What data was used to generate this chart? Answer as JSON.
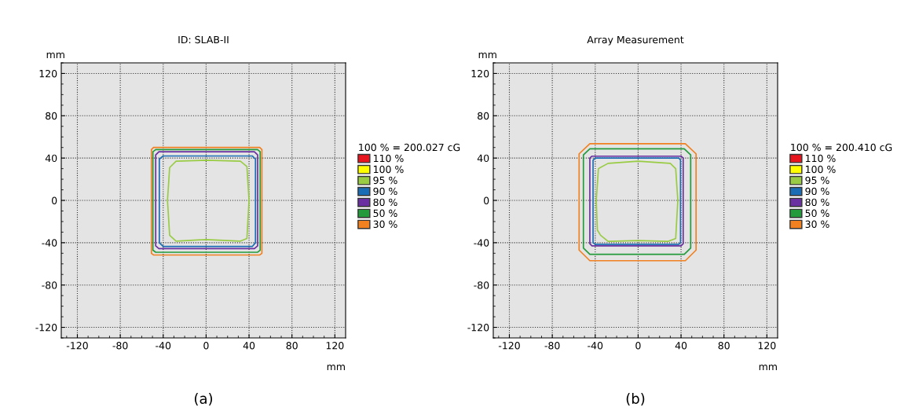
{
  "chart_data": [
    {
      "type": "line",
      "title": "ID: SLAB-II",
      "xlabel": "mm",
      "ylabel": "mm",
      "legend_title": "100 % = 200.027 cG",
      "legend": "right",
      "grid": true,
      "marker": "none",
      "line_style": "solid",
      "xlim": [
        -135,
        130
      ],
      "ylim": [
        -130,
        130
      ],
      "xticks": [
        {
          "value": -130,
          "label": null
        },
        -120,
        {
          "value": -110,
          "label": null
        },
        {
          "value": -100,
          "label": null
        },
        {
          "value": -90,
          "label": null
        },
        -80,
        {
          "value": -70,
          "label": null
        },
        {
          "value": -60,
          "label": null
        },
        {
          "value": -50,
          "label": null
        },
        -40,
        {
          "value": -30,
          "label": null
        },
        {
          "value": -20,
          "label": null
        },
        {
          "value": -10,
          "label": null
        },
        0,
        {
          "value": 10,
          "label": null
        },
        {
          "value": 20,
          "label": null
        },
        {
          "value": 30,
          "label": null
        },
        40,
        {
          "value": 50,
          "label": null
        },
        {
          "value": 60,
          "label": null
        },
        {
          "value": 70,
          "label": null
        },
        80,
        {
          "value": 90,
          "label": null
        },
        {
          "value": 100,
          "label": null
        },
        {
          "value": 110,
          "label": null
        },
        120
      ],
      "yticks": [
        {
          "value": -130,
          "label": null
        },
        -120,
        {
          "value": -110,
          "label": null
        },
        {
          "value": -100,
          "label": null
        },
        {
          "value": -90,
          "label": null
        },
        -80,
        {
          "value": -70,
          "label": null
        },
        {
          "value": -60,
          "label": null
        },
        {
          "value": -50,
          "label": null
        },
        -40,
        {
          "value": -30,
          "label": null
        },
        {
          "value": -20,
          "label": null
        },
        {
          "value": -10,
          "label": null
        },
        0,
        {
          "value": 10,
          "label": null
        },
        {
          "value": 20,
          "label": null
        },
        {
          "value": 30,
          "label": null
        },
        40,
        {
          "value": 50,
          "label": null
        },
        {
          "value": 60,
          "label": null
        },
        {
          "value": 70,
          "label": null
        },
        80,
        {
          "value": 90,
          "label": null
        },
        {
          "value": 100,
          "label": null
        },
        {
          "value": 110,
          "label": null
        },
        120,
        {
          "value": 130,
          "label": null
        }
      ],
      "annotations": [
        "(a)"
      ],
      "series": [
        {
          "name": "110 %",
          "color": "#e8141e",
          "x": [
            null
          ],
          "values": [
            null
          ]
        },
        {
          "name": "100 %",
          "color": "#ffff00",
          "x": [
            null
          ],
          "values": [
            null
          ]
        },
        {
          "name": "95 %",
          "color": "#99cc44",
          "x": [
            -36,
            -34,
            -28,
            0,
            32,
            38,
            40,
            null,
            -36,
            -34,
            -28,
            0,
            32,
            38,
            40
          ],
          "values": [
            0,
            31,
            37,
            38,
            37,
            32,
            0,
            null,
            0,
            -33,
            -38.5,
            -37,
            -38.5,
            -36,
            0
          ]
        },
        {
          "name": "90 %",
          "color": "#1a6cb4",
          "x": [
            -43.6,
            -43.6,
            -40,
            43,
            46,
            46,
            null,
            -43.6,
            -43.6,
            -40,
            43,
            46,
            46
          ],
          "values": [
            0,
            39,
            42,
            42,
            39,
            0,
            null,
            0,
            -40,
            -43.6,
            -43.6,
            -40,
            0
          ]
        },
        {
          "name": "80 %",
          "color": "#6a2fa0",
          "x": [
            -47,
            -47,
            -44,
            45,
            48,
            48,
            null,
            -47,
            -47,
            -44,
            45,
            48,
            48
          ],
          "values": [
            0,
            43,
            46,
            46,
            43,
            0,
            null,
            0,
            -43,
            -45.6,
            -45.6,
            -43,
            0
          ]
        },
        {
          "name": "50 %",
          "color": "#239a3b",
          "x": [
            -49.6,
            -49.6,
            -47,
            48,
            50.4,
            50.4,
            null,
            -49.6,
            -49.6,
            -47,
            48,
            50.4,
            50.4
          ],
          "values": [
            0,
            46,
            48,
            48,
            46,
            0,
            null,
            0,
            -47,
            -49,
            -49,
            -47,
            0
          ]
        },
        {
          "name": "30 %",
          "color": "#f08020",
          "x": [
            -51,
            -51,
            -49,
            50,
            52,
            52,
            null,
            -51,
            -51,
            -49,
            50,
            52,
            52
          ],
          "values": [
            0,
            48,
            50,
            50,
            48,
            0,
            null,
            0,
            -50,
            -51.6,
            -51.6,
            -50,
            0
          ]
        }
      ]
    },
    {
      "type": "line",
      "title": "Array Measurement",
      "xlabel": "mm",
      "ylabel": "mm",
      "legend_title": "100 % = 200.410 cG",
      "legend": "right",
      "grid": true,
      "marker": "none",
      "line_style": "solid",
      "xlim": [
        -135,
        130
      ],
      "ylim": [
        -130,
        130
      ],
      "xticks": [
        {
          "value": -130,
          "label": null
        },
        -120,
        {
          "value": -110,
          "label": null
        },
        {
          "value": -100,
          "label": null
        },
        {
          "value": -90,
          "label": null
        },
        -80,
        {
          "value": -70,
          "label": null
        },
        {
          "value": -60,
          "label": null
        },
        {
          "value": -50,
          "label": null
        },
        -40,
        {
          "value": -30,
          "label": null
        },
        {
          "value": -20,
          "label": null
        },
        {
          "value": -10,
          "label": null
        },
        0,
        {
          "value": 10,
          "label": null
        },
        {
          "value": 20,
          "label": null
        },
        {
          "value": 30,
          "label": null
        },
        40,
        {
          "value": 50,
          "label": null
        },
        {
          "value": 60,
          "label": null
        },
        {
          "value": 70,
          "label": null
        },
        80,
        {
          "value": 90,
          "label": null
        },
        {
          "value": 100,
          "label": null
        },
        {
          "value": 110,
          "label": null
        },
        120
      ],
      "yticks": [
        {
          "value": -130,
          "label": null
        },
        -120,
        {
          "value": -110,
          "label": null
        },
        {
          "value": -100,
          "label": null
        },
        {
          "value": -90,
          "label": null
        },
        -80,
        {
          "value": -70,
          "label": null
        },
        {
          "value": -60,
          "label": null
        },
        {
          "value": -50,
          "label": null
        },
        -40,
        {
          "value": -30,
          "label": null
        },
        {
          "value": -20,
          "label": null
        },
        {
          "value": -10,
          "label": null
        },
        0,
        {
          "value": 10,
          "label": null
        },
        {
          "value": 20,
          "label": null
        },
        {
          "value": 30,
          "label": null
        },
        40,
        {
          "value": 50,
          "label": null
        },
        {
          "value": 60,
          "label": null
        },
        {
          "value": 70,
          "label": null
        },
        80,
        {
          "value": 90,
          "label": null
        },
        {
          "value": 100,
          "label": null
        },
        {
          "value": 110,
          "label": null
        },
        120,
        {
          "value": 130,
          "label": null
        }
      ],
      "annotations": [
        "(b)"
      ],
      "series": [
        {
          "name": "110 %",
          "color": "#e8141e",
          "x": [
            null
          ],
          "values": [
            null
          ]
        },
        {
          "name": "100 %",
          "color": "#ffff00",
          "x": [
            null
          ],
          "values": [
            null
          ]
        },
        {
          "name": "95 %",
          "color": "#99cc44",
          "x": [
            -39,
            -37,
            -28,
            0,
            30,
            35,
            37,
            null,
            -39,
            -38,
            -35,
            -28,
            0,
            28,
            35,
            37
          ],
          "values": [
            0,
            30,
            35,
            37,
            35,
            30,
            0,
            null,
            0,
            -28,
            -33,
            -38.7,
            -38,
            -38.7,
            -36,
            0
          ]
        },
        {
          "name": "90 %",
          "color": "#1a6cb4",
          "x": [
            -42,
            -42,
            -40,
            38,
            39.5,
            39.5,
            null,
            -42,
            -42,
            -40,
            38,
            39.5,
            39.5
          ],
          "values": [
            0,
            38,
            40,
            40,
            38,
            0,
            null,
            0,
            -40,
            -41.5,
            -41.5,
            -40,
            0
          ]
        },
        {
          "name": "80 %",
          "color": "#6a2fa0",
          "x": [
            -45,
            -45,
            -43,
            40,
            42,
            42,
            null,
            -45,
            -45,
            -43,
            40,
            42,
            42
          ],
          "values": [
            0,
            40,
            41.8,
            41.8,
            40,
            0,
            null,
            0,
            -41,
            -43,
            -43,
            -41,
            0
          ]
        },
        {
          "name": "50 %",
          "color": "#239a3b",
          "x": [
            -51,
            -51,
            -45,
            43,
            49,
            49,
            null,
            -51,
            -51,
            -45,
            43,
            49,
            49
          ],
          "values": [
            0,
            43,
            48.7,
            48.7,
            43,
            0,
            null,
            0,
            -45,
            -51,
            -51,
            -45,
            0
          ]
        },
        {
          "name": "30 %",
          "color": "#f08020",
          "x": [
            -55,
            -55,
            -45,
            44,
            54,
            54,
            null,
            -55,
            -55,
            -45,
            44,
            54,
            54
          ],
          "values": [
            0,
            44,
            53.6,
            53.6,
            44,
            0,
            null,
            0,
            -47,
            -57,
            -57,
            -47,
            0
          ]
        }
      ]
    }
  ]
}
